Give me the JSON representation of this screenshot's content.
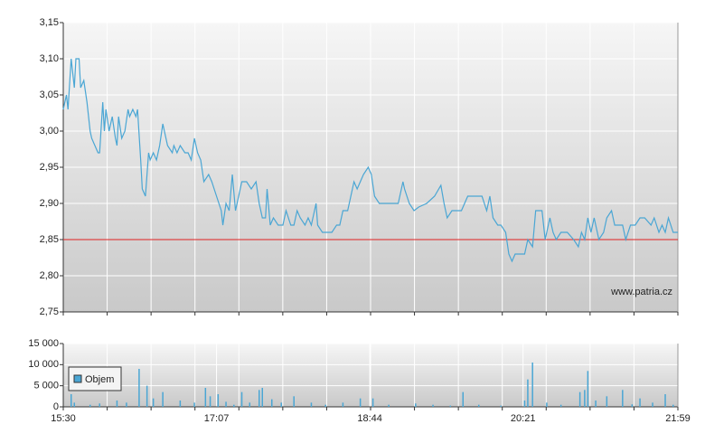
{
  "chart_data": [
    {
      "type": "line",
      "color": "#4aa6d4",
      "x": [
        0,
        2,
        3,
        5,
        7,
        8,
        10,
        11,
        13,
        15,
        17,
        18,
        20,
        22,
        23,
        25,
        26,
        27,
        29,
        31,
        33,
        34,
        35,
        37,
        39,
        41,
        42,
        44,
        46,
        47,
        49,
        50,
        52,
        54,
        55,
        57,
        59,
        61,
        63,
        65,
        66,
        69,
        70,
        72,
        74,
        77,
        79,
        81,
        83,
        85,
        87,
        89,
        92,
        94,
        97,
        100,
        101,
        103,
        105,
        107,
        109,
        110,
        113,
        116,
        119,
        122,
        124,
        126,
        128,
        129,
        131,
        133,
        136,
        139,
        141,
        144,
        146,
        148,
        150,
        153,
        155,
        157,
        160,
        161,
        164,
        167,
        170,
        173,
        175,
        177,
        180,
        182,
        184,
        186,
        188,
        190,
        193,
        195,
        197,
        200,
        206,
        212,
        215,
        216,
        219,
        222,
        225,
        230,
        235,
        239,
        241,
        243,
        246,
        252,
        256,
        260,
        265,
        268,
        270,
        272,
        275,
        277,
        280,
        282,
        284,
        286,
        292,
        294,
        297,
        299,
        303,
        305,
        308,
        310,
        312,
        315,
        319,
        323,
        326,
        328,
        330,
        332,
        334,
        336,
        339,
        342,
        344,
        347,
        349,
        354,
        356,
        359,
        362,
        365,
        368,
        372,
        374,
        377,
        379,
        381,
        383,
        386,
        389
      ],
      "values": [
        3.03,
        3.05,
        3.03,
        3.1,
        3.06,
        3.1,
        3.1,
        3.06,
        3.07,
        3.04,
        3.0,
        2.99,
        2.98,
        2.97,
        2.97,
        3.04,
        3.0,
        3.03,
        3.0,
        3.02,
        2.99,
        2.98,
        3.02,
        2.99,
        3.0,
        3.03,
        3.02,
        3.03,
        3.02,
        3.03,
        2.96,
        2.92,
        2.91,
        2.97,
        2.96,
        2.97,
        2.96,
        2.98,
        3.01,
        2.99,
        2.98,
        2.97,
        2.98,
        2.97,
        2.98,
        2.97,
        2.97,
        2.96,
        2.99,
        2.97,
        2.96,
        2.93,
        2.94,
        2.93,
        2.91,
        2.89,
        2.87,
        2.9,
        2.89,
        2.94,
        2.89,
        2.9,
        2.93,
        2.93,
        2.92,
        2.93,
        2.9,
        2.88,
        2.88,
        2.92,
        2.87,
        2.88,
        2.87,
        2.87,
        2.89,
        2.87,
        2.87,
        2.89,
        2.88,
        2.87,
        2.88,
        2.87,
        2.9,
        2.87,
        2.86,
        2.86,
        2.86,
        2.87,
        2.87,
        2.89,
        2.89,
        2.91,
        2.93,
        2.92,
        2.93,
        2.94,
        2.95,
        2.94,
        2.91,
        2.9,
        2.9,
        2.9,
        2.93,
        2.92,
        2.9,
        2.89,
        2.895,
        2.9,
        2.91,
        2.925,
        2.9,
        2.88,
        2.89,
        2.89,
        2.91,
        2.91,
        2.91,
        2.89,
        2.91,
        2.88,
        2.87,
        2.87,
        2.86,
        2.83,
        2.82,
        2.83,
        2.83,
        2.85,
        2.84,
        2.89,
        2.89,
        2.85,
        2.88,
        2.86,
        2.85,
        2.86,
        2.86,
        2.85,
        2.84,
        2.86,
        2.85,
        2.88,
        2.86,
        2.88,
        2.85,
        2.86,
        2.88,
        2.89,
        2.87,
        2.87,
        2.85,
        2.87,
        2.87,
        2.88,
        2.88,
        2.87,
        2.88,
        2.86,
        2.87,
        2.86,
        2.88,
        2.86,
        2.86
      ],
      "xlim": [
        0,
        389
      ],
      "ylim": [
        2.75,
        3.15
      ],
      "yticks": [
        {
          "value": 2.75,
          "label": "2,75"
        },
        {
          "value": 2.8,
          "label": "2,80"
        },
        {
          "value": 2.85,
          "label": "2,85"
        },
        {
          "value": 2.9,
          "label": "2,90"
        },
        {
          "value": 2.95,
          "label": "2,95"
        },
        {
          "value": 3.0,
          "label": "3,00"
        },
        {
          "value": 3.05,
          "label": "3,05"
        },
        {
          "value": 3.1,
          "label": "3,10"
        },
        {
          "value": 3.15,
          "label": "3,15"
        }
      ],
      "reference_line": {
        "value": 2.85,
        "color": "#e02020"
      },
      "annotation": "www.patria.cz",
      "grid": true
    },
    {
      "type": "bar",
      "x": [
        5,
        7,
        17,
        23,
        34,
        40,
        48,
        53,
        57,
        63,
        74,
        83,
        90,
        93,
        98,
        103,
        108,
        113,
        118,
        124,
        126,
        132,
        138,
        146,
        157,
        166,
        177,
        188,
        196,
        206,
        223,
        234,
        245,
        253,
        263,
        277,
        292,
        294,
        297,
        306,
        315,
        327,
        330,
        332,
        337,
        344,
        354,
        360,
        365,
        373,
        381,
        386
      ],
      "series": [
        {
          "name": "Objem",
          "color": "#4aa6d4",
          "values": [
            3000,
            1000,
            500,
            800,
            1500,
            1000,
            9000,
            5000,
            2000,
            3500,
            1500,
            1000,
            4500,
            2500,
            3000,
            1200,
            500,
            3500,
            1000,
            4000,
            4500,
            1800,
            1000,
            2500,
            1000,
            500,
            1000,
            2000,
            2000,
            500,
            800,
            500,
            300,
            3500,
            500,
            300,
            1500,
            6500,
            10500,
            1000,
            500,
            3500,
            4000,
            8500,
            1500,
            2500,
            4000,
            600,
            2000,
            1000,
            3000,
            500
          ]
        }
      ],
      "xlim": [
        0,
        389
      ],
      "xticks": [
        {
          "value": 0,
          "label": "15:30"
        },
        {
          "value": 97,
          "label": "17:07"
        },
        {
          "value": 194,
          "label": "18:44"
        },
        {
          "value": 291,
          "label": "20:21"
        },
        {
          "value": 389,
          "label": "21:59"
        }
      ],
      "ylim": [
        0,
        15000
      ],
      "yticks": [
        0,
        {
          "value": 5000,
          "label": "5 000"
        },
        {
          "value": 10000,
          "label": "10 000"
        },
        {
          "value": 15000,
          "label": "15 000"
        }
      ],
      "grid": true
    }
  ]
}
